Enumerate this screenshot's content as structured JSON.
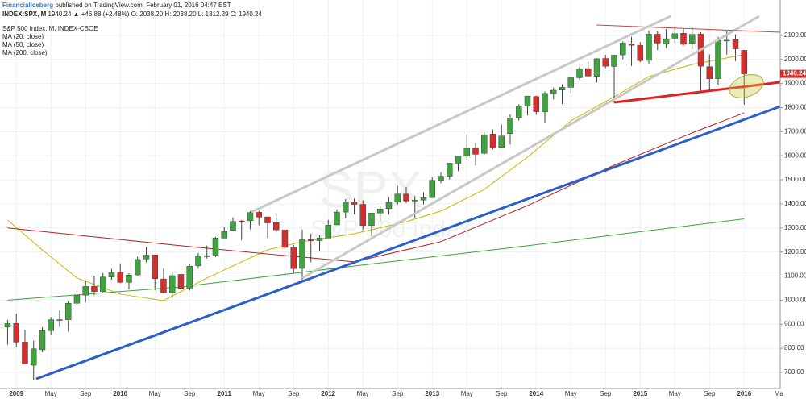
{
  "header": {
    "publisher": "FinancialIceberg",
    "published": "published on TradingView.com, February 01, 2016 04:47 EST",
    "symbol": "INDEX:SPX, M",
    "quote": "1940.24 ▲ +46.88 (+2.48%) O: 2038.20 H: 2038.20 L: 1812.29 C: 1940.24",
    "instrument": "S&P 500 Index, M, INDEX-CBOE"
  },
  "watermark": {
    "symbol": "SPX",
    "name": "S&P 500 Index"
  },
  "chart_data": {
    "type": "candlestick",
    "open": [
      888,
      903,
      826,
      730,
      794,
      873,
      919,
      919,
      987,
      1021,
      1057,
      1036,
      1096,
      1116,
      1074,
      1105,
      1171,
      1188,
      1088,
      1031,
      1107,
      1050,
      1143,
      1185,
      1187,
      1258,
      1290,
      1329,
      1330,
      1365,
      1346,
      1322,
      1292,
      1220,
      1132,
      1251,
      1247,
      1258,
      1313,
      1366,
      1408,
      1398,
      1310,
      1362,
      1380,
      1407,
      1441,
      1412,
      1416,
      1426,
      1498,
      1515,
      1569,
      1598,
      1631,
      1610,
      1690,
      1635,
      1692,
      1758,
      1806,
      1846,
      1782,
      1858,
      1873,
      1884,
      1924,
      1962,
      1930,
      2004,
      1971,
      2019,
      2065,
      2059,
      1996,
      2105,
      2064,
      2088,
      2109,
      2067,
      2105,
      1970,
      1920,
      2080,
      2082,
      2038.2
    ],
    "high": [
      918,
      944,
      876,
      832,
      888,
      930,
      957,
      997,
      1039,
      1081,
      1101,
      1113,
      1130,
      1150,
      1112,
      1181,
      1220,
      1188,
      1131,
      1120,
      1130,
      1149,
      1196,
      1227,
      1263,
      1303,
      1344,
      1333,
      1370,
      1371,
      1346,
      1357,
      1308,
      1230,
      1293,
      1277,
      1270,
      1334,
      1378,
      1420,
      1422,
      1415,
      1363,
      1392,
      1427,
      1475,
      1470,
      1434,
      1448,
      1510,
      1531,
      1570,
      1598,
      1687,
      1654,
      1698,
      1709,
      1730,
      1772,
      1814,
      1849,
      1850,
      1867,
      1883,
      1897,
      1924,
      1968,
      1991,
      2005,
      2019,
      2018,
      2075,
      2094,
      2072,
      2120,
      2117,
      2126,
      2135,
      2130,
      2133,
      2113,
      2021,
      2094,
      2117,
      2104,
      2038.2
    ],
    "low": [
      815,
      805,
      735,
      667,
      784,
      855,
      889,
      869,
      979,
      991,
      1020,
      1030,
      1085,
      1071,
      1045,
      1101,
      1157,
      1041,
      1029,
      1010,
      1040,
      1040,
      1131,
      1173,
      1179,
      1257,
      1289,
      1249,
      1294,
      1311,
      1258,
      1282,
      1102,
      1114,
      1075,
      1158,
      1202,
      1258,
      1312,
      1340,
      1357,
      1292,
      1267,
      1325,
      1355,
      1397,
      1403,
      1343,
      1398,
      1426,
      1486,
      1501,
      1536,
      1581,
      1560,
      1605,
      1627,
      1633,
      1647,
      1746,
      1768,
      1770,
      1738,
      1834,
      1815,
      1860,
      1915,
      1930,
      1904,
      1964,
      1821,
      2001,
      1973,
      1988,
      1981,
      2039,
      2048,
      2068,
      2057,
      2044,
      1867,
      1872,
      1893,
      2020,
      1993,
      1812.29
    ],
    "close": [
      903,
      826,
      735,
      798,
      873,
      919,
      919,
      987,
      1021,
      1057,
      1036,
      1096,
      1115,
      1074,
      1104,
      1169,
      1187,
      1089,
      1031,
      1102,
      1049,
      1141,
      1183,
      1181,
      1258,
      1286,
      1327,
      1326,
      1364,
      1345,
      1321,
      1292,
      1219,
      1131,
      1253,
      1247,
      1258,
      1312,
      1366,
      1408,
      1398,
      1310,
      1362,
      1379,
      1407,
      1441,
      1412,
      1416,
      1426,
      1498,
      1515,
      1569,
      1598,
      1631,
      1606,
      1686,
      1633,
      1682,
      1757,
      1806,
      1848,
      1783,
      1859,
      1872,
      1884,
      1924,
      1960,
      1931,
      2003,
      1972,
      2018,
      2068,
      2059,
      1995,
      2105,
      2068,
      2086,
      2107,
      2063,
      2104,
      1972,
      1920,
      2079,
      2080,
      2044,
      1940.24
    ],
    "up_color": "#3fa33f",
    "down_color": "#d32f2f",
    "lines": [
      {
        "name": "MA (20, close)",
        "color": "#c9b800",
        "x": [
          0,
          4,
          8,
          13,
          18,
          23,
          30,
          34,
          40,
          46,
          50,
          55,
          60,
          65,
          70,
          74,
          79,
          85
        ],
        "values": [
          1333,
          1209,
          1092,
          1025,
          998,
          1092,
          1209,
          1243,
          1276,
          1326,
          1370,
          1460,
          1594,
          1745,
          1845,
          1929,
          1979,
          2020
        ]
      },
      {
        "name": "MA (50, close)",
        "color": "#b71c1c",
        "x": [
          0,
          20,
          30,
          40,
          50,
          60,
          70,
          79,
          85
        ],
        "values": [
          1300,
          1226,
          1192,
          1159,
          1243,
          1393,
          1561,
          1695,
          1778
        ]
      },
      {
        "name": "MA (200, close)",
        "color": "#3aa53a",
        "x": [
          0,
          20,
          40,
          60,
          85
        ],
        "values": [
          1000,
          1055,
          1142,
          1226,
          1338
        ]
      }
    ],
    "xlim": [
      -0.88,
      89.16
    ],
    "xticks": [
      {
        "value": 1,
        "label": "2009"
      },
      {
        "value": 5,
        "label": "May"
      },
      {
        "value": 9,
        "label": "Sep"
      },
      {
        "value": 13,
        "label": "2010"
      },
      {
        "value": 17,
        "label": "May"
      },
      {
        "value": 21,
        "label": "Sep"
      },
      {
        "value": 25,
        "label": "2011"
      },
      {
        "value": 29,
        "label": "May"
      },
      {
        "value": 33,
        "label": "Sep"
      },
      {
        "value": 37,
        "label": "2012"
      },
      {
        "value": 41,
        "label": "May"
      },
      {
        "value": 45,
        "label": "Sep"
      },
      {
        "value": 49,
        "label": "2013"
      },
      {
        "value": 53,
        "label": "May"
      },
      {
        "value": 57,
        "label": "Sep"
      },
      {
        "value": 61,
        "label": "2014"
      },
      {
        "value": 65,
        "label": "May"
      },
      {
        "value": 69,
        "label": "Sep"
      },
      {
        "value": 73,
        "label": "2015"
      },
      {
        "value": 77,
        "label": "May"
      },
      {
        "value": 81,
        "label": "Sep"
      },
      {
        "value": 85,
        "label": "2016"
      },
      {
        "value": 89,
        "label": "Ma"
      }
    ],
    "ylim": [
      633,
      2247
    ],
    "yticks": [
      {
        "value": 700,
        "label": "700.00"
      },
      {
        "value": 800,
        "label": "800.00"
      },
      {
        "value": 900,
        "label": "900.00"
      },
      {
        "value": 1000,
        "label": "1000.00"
      },
      {
        "value": 1100,
        "label": "1100.00"
      },
      {
        "value": 1200,
        "label": "1200.00"
      },
      {
        "value": 1300,
        "label": "1300.00"
      },
      {
        "value": 1400,
        "label": "1400.00"
      },
      {
        "value": 1500,
        "label": "1500.00"
      },
      {
        "value": 1600,
        "label": "1600.00"
      },
      {
        "value": 1700,
        "label": "1700.00"
      },
      {
        "value": 1800,
        "label": "1800.00"
      },
      {
        "value": 1900,
        "label": "1900.00"
      },
      {
        "value": 2000,
        "label": "2000.00"
      },
      {
        "value": 2100,
        "label": "2100.00"
      }
    ],
    "grid": true
  }
}
